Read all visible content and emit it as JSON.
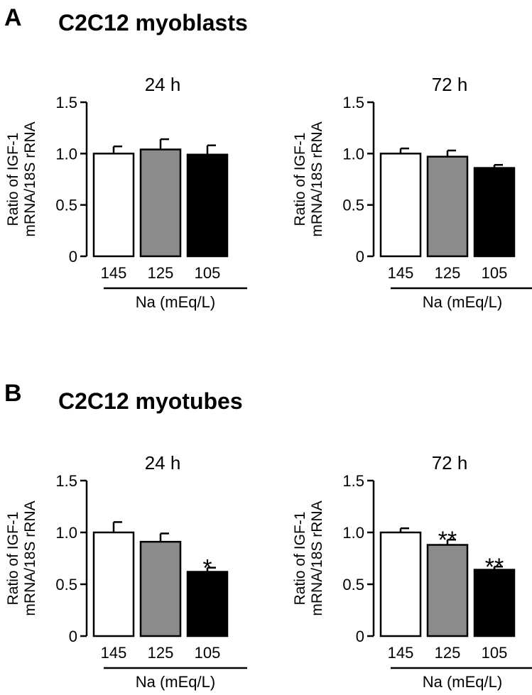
{
  "panels": [
    {
      "letter": "A",
      "title": "C2C12 myoblasts"
    },
    {
      "letter": "B",
      "title": "C2C12 myotubes"
    }
  ],
  "colors": {
    "bar_145": "#ffffff",
    "bar_125": "#8c8c8c",
    "bar_105": "#000000",
    "stroke": "#000000"
  },
  "chart_data": [
    {
      "type": "bar",
      "panel": "A",
      "title": "24 h",
      "categories": [
        "145",
        "125",
        "105"
      ],
      "values": [
        1.0,
        1.04,
        0.99
      ],
      "errors": [
        0.07,
        0.1,
        0.09
      ],
      "significance": [
        "",
        "",
        ""
      ],
      "ylabel": [
        "Ratio of IGF-1",
        "mRNA/18S rRNA"
      ],
      "xlabel": "Na (mEq/L)",
      "ylim": [
        0,
        1.5
      ],
      "yticks": [
        "0",
        "0.5",
        "1.0",
        "1.5"
      ],
      "grid": false
    },
    {
      "type": "bar",
      "panel": "A",
      "title": "72 h",
      "categories": [
        "145",
        "125",
        "105"
      ],
      "values": [
        1.0,
        0.97,
        0.86
      ],
      "errors": [
        0.05,
        0.06,
        0.03
      ],
      "significance": [
        "",
        "",
        ""
      ],
      "ylabel": [
        "Ratio of IGF-1",
        "mRNA/18S rRNA"
      ],
      "xlabel": "Na (mEq/L)",
      "ylim": [
        0,
        1.5
      ],
      "yticks": [
        "0",
        "0.5",
        "1.0",
        "1.5"
      ],
      "grid": false
    },
    {
      "type": "bar",
      "panel": "B",
      "title": "24 h",
      "categories": [
        "145",
        "125",
        "105"
      ],
      "values": [
        1.0,
        0.91,
        0.62
      ],
      "errors": [
        0.1,
        0.08,
        0.04
      ],
      "significance": [
        "",
        "",
        "*"
      ],
      "ylabel": [
        "Ratio of IGF-1",
        "mRNA/18S rRNA"
      ],
      "xlabel": "Na (mEq/L)",
      "ylim": [
        0,
        1.5
      ],
      "yticks": [
        "0",
        "0.5",
        "1.0",
        "1.5"
      ],
      "grid": false
    },
    {
      "type": "bar",
      "panel": "B",
      "title": "72 h",
      "categories": [
        "145",
        "125",
        "105"
      ],
      "values": [
        1.0,
        0.88,
        0.64
      ],
      "errors": [
        0.04,
        0.05,
        0.03
      ],
      "significance": [
        "",
        "**",
        "**"
      ],
      "ylabel": [
        "Ratio of IGF-1",
        "mRNA/18S rRNA"
      ],
      "xlabel": "Na (mEq/L)",
      "ylim": [
        0,
        1.5
      ],
      "yticks": [
        "0",
        "0.5",
        "1.0",
        "1.5"
      ],
      "grid": false
    }
  ]
}
